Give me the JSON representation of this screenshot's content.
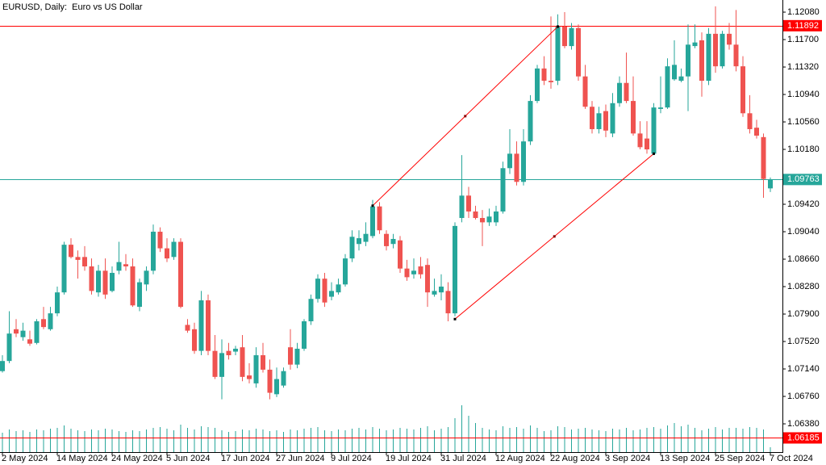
{
  "chart_data": {
    "type": "candlestick",
    "title": "EURUSD, Daily:  Euro vs US Dollar",
    "up_color": "#26a69a",
    "down_color": "#ef5350",
    "volume_color": "#26a69a",
    "ylim": [
      1.05989,
      1.12248
    ],
    "yticks": [
      {
        "value": 1.1208,
        "label": "1.12080"
      },
      {
        "value": 1.117,
        "label": "1.11700"
      },
      {
        "value": 1.1132,
        "label": "1.11320"
      },
      {
        "value": 1.1094,
        "label": "1.10940"
      },
      {
        "value": 1.1056,
        "label": "1.10560"
      },
      {
        "value": 1.1018,
        "label": "1.10180"
      },
      {
        "value": 1.0942,
        "label": "1.09420"
      },
      {
        "value": 1.0904,
        "label": "1.09040"
      },
      {
        "value": 1.0866,
        "label": "1.08660"
      },
      {
        "value": 1.0828,
        "label": "1.08280"
      },
      {
        "value": 1.079,
        "label": "1.07900"
      },
      {
        "value": 1.0752,
        "label": "1.07520"
      },
      {
        "value": 1.0714,
        "label": "1.07140"
      },
      {
        "value": 1.0676,
        "label": "1.06760"
      },
      {
        "value": 1.0638,
        "label": "1.06380"
      }
    ],
    "categories": [
      "2 May 2024",
      null,
      null,
      null,
      null,
      null,
      null,
      null,
      "14 May 2024",
      null,
      null,
      null,
      null,
      null,
      null,
      null,
      "24 May 2024",
      null,
      null,
      null,
      null,
      null,
      null,
      null,
      "5 Jun 2024",
      null,
      null,
      null,
      null,
      null,
      null,
      null,
      "17 Jun 2024",
      null,
      null,
      null,
      null,
      null,
      null,
      null,
      "27 Jun 2024",
      null,
      null,
      null,
      null,
      null,
      null,
      null,
      "9 Jul 2024",
      null,
      null,
      null,
      null,
      null,
      null,
      null,
      "19 Jul 2024",
      null,
      null,
      null,
      null,
      null,
      null,
      null,
      "31 Jul 2024",
      null,
      null,
      null,
      null,
      null,
      null,
      null,
      "12 Aug 2024",
      null,
      null,
      null,
      null,
      null,
      null,
      null,
      "22 Aug 2024",
      null,
      null,
      null,
      null,
      null,
      null,
      null,
      "3 Sep 2024",
      null,
      null,
      null,
      null,
      null,
      null,
      null,
      "13 Sep 2024",
      null,
      null,
      null,
      null,
      null,
      null,
      null,
      "25 Sep 2024",
      null,
      null,
      null,
      null,
      null,
      null,
      null,
      "7 Oct 2024"
    ],
    "open": [
      1.0711,
      1.0725,
      1.0769,
      1.0758,
      1.0755,
      1.075,
      1.0783,
      1.0769,
      1.0791,
      1.082,
      1.0886,
      1.0869,
      1.0869,
      1.0856,
      1.082,
      1.085,
      1.0822,
      1.085,
      1.0859,
      1.0856,
      1.08,
      1.0831,
      1.085,
      1.0904,
      1.0881,
      1.0869,
      1.089,
      1.0775,
      1.0769,
      1.0739,
      1.0809,
      1.0739,
      1.0703,
      1.0739,
      1.0738,
      1.0744,
      1.0705,
      1.0694,
      1.0733,
      1.0713,
      1.0679,
      1.0691,
      1.0744,
      1.072,
      1.0742,
      1.078,
      1.0811,
      1.0839,
      1.0814,
      1.082,
      1.0831,
      1.0867,
      1.0887,
      1.089,
      1.0898,
      1.0939,
      1.0901,
      1.0887,
      1.0892,
      1.0853,
      1.0845,
      1.0856,
      1.0858,
      1.0817,
      1.082,
      1.0822,
      1.0791,
      1.0923,
      1.0954,
      1.0932,
      1.0923,
      1.0917,
      1.0917,
      1.0932,
      1.0992,
      1.1012,
      1.0973,
      1.1029,
      1.1085,
      1.113,
      1.1113,
      1.1113,
      1.1188,
      1.1161,
      1.1186,
      1.1119,
      1.1077,
      1.1046,
      1.1071,
      1.104,
      1.1082,
      1.111,
      1.1085,
      1.104,
      1.1033,
      1.1012,
      1.1074,
      1.1076,
      1.1115,
      1.1113,
      1.1119,
      1.1161,
      1.1169,
      1.1113,
      1.1178,
      1.1133,
      1.1178,
      1.1163,
      1.1133,
      1.1068,
      1.1048,
      1.1035,
      1.0964
    ],
    "high": [
      1.0733,
      1.0794,
      1.0783,
      1.0778,
      1.0767,
      1.0783,
      1.08,
      1.08,
      1.0828,
      1.089,
      1.0895,
      1.0878,
      1.0884,
      1.0867,
      1.0858,
      1.0867,
      1.0856,
      1.089,
      1.0873,
      1.0867,
      1.0839,
      1.0856,
      1.0914,
      1.091,
      1.0895,
      1.0895,
      1.0895,
      1.0783,
      1.0778,
      1.0822,
      1.0817,
      1.0761,
      1.0755,
      1.075,
      1.0746,
      1.0761,
      1.0722,
      1.0744,
      1.075,
      1.0727,
      1.0716,
      1.0716,
      1.0769,
      1.075,
      1.0783,
      1.0817,
      1.0845,
      1.0847,
      1.0834,
      1.0839,
      1.0873,
      1.0906,
      1.0906,
      1.0917,
      1.0948,
      1.0945,
      1.0906,
      1.0901,
      1.0898,
      1.0865,
      1.0867,
      1.0869,
      1.0867,
      1.0839,
      1.0845,
      1.0834,
      1.0917,
      1.101,
      1.0966,
      1.094,
      1.0934,
      1.0936,
      1.094,
      1.1001,
      1.1046,
      1.1029,
      1.1046,
      1.1093,
      1.1135,
      1.1147,
      1.1202,
      1.1205,
      1.1208,
      1.1193,
      1.1191,
      1.1135,
      1.1085,
      1.1077,
      1.108,
      1.1096,
      1.1119,
      1.1152,
      1.1119,
      1.1057,
      1.1057,
      1.1082,
      1.1119,
      1.1144,
      1.1169,
      1.113,
      1.1191,
      1.1191,
      1.118,
      1.1186,
      1.1216,
      1.1182,
      1.1193,
      1.1211,
      1.1147,
      1.1093,
      1.1059,
      1.104,
      1.0979
    ],
    "low": [
      1.0709,
      1.0722,
      1.0758,
      1.0753,
      1.0746,
      1.0748,
      1.0769,
      1.0767,
      1.0787,
      1.0817,
      1.0867,
      1.0839,
      1.085,
      1.0817,
      1.0814,
      1.0811,
      1.082,
      1.0845,
      1.085,
      1.08,
      1.0794,
      1.0822,
      1.0845,
      1.0876,
      1.0862,
      1.0865,
      1.0798,
      1.0764,
      1.0735,
      1.0733,
      1.0733,
      1.07,
      1.0672,
      1.0727,
      1.0733,
      1.0697,
      1.0694,
      1.0688,
      1.0709,
      1.0672,
      1.0675,
      1.0688,
      1.0713,
      1.0715,
      1.0739,
      1.0775,
      1.0806,
      1.08,
      1.0809,
      1.0817,
      1.0828,
      1.0862,
      1.0878,
      1.0884,
      1.0895,
      1.0901,
      1.0878,
      1.0881,
      1.0847,
      1.0836,
      1.0839,
      1.0839,
      1.08,
      1.0814,
      1.0809,
      1.078,
      1.0787,
      1.0917,
      1.0923,
      1.0921,
      1.0884,
      1.0912,
      1.0912,
      1.0929,
      1.0984,
      1.0968,
      1.0968,
      1.1024,
      1.1082,
      1.1107,
      1.1102,
      1.1107,
      1.1158,
      1.1156,
      1.1113,
      1.1074,
      1.104,
      1.104,
      1.1035,
      1.1035,
      1.1077,
      1.1082,
      1.1037,
      1.1018,
      1.1012,
      1.101,
      1.1068,
      1.1074,
      1.1113,
      1.1111,
      1.1071,
      1.1158,
      1.1091,
      1.1107,
      1.1124,
      1.113,
      1.1156,
      1.1126,
      1.1063,
      1.104,
      1.1033,
      1.0951,
      1.0959
    ],
    "close": [
      1.0725,
      1.0763,
      1.0763,
      1.0767,
      1.0749,
      1.078,
      1.0772,
      1.0791,
      1.082,
      1.0886,
      1.0869,
      1.0865,
      1.0856,
      1.0822,
      1.085,
      1.0817,
      1.0847,
      1.0862,
      1.0856,
      1.0802,
      1.0834,
      1.085,
      1.0904,
      1.0881,
      1.0867,
      1.089,
      1.08,
      1.0767,
      1.0739,
      1.0809,
      1.0739,
      1.0703,
      1.0736,
      1.0733,
      1.0742,
      1.0703,
      1.07,
      1.0733,
      1.0713,
      1.0681,
      1.07,
      1.0711,
      1.072,
      1.0742,
      1.078,
      1.0811,
      1.0839,
      1.0806,
      1.0822,
      1.0831,
      1.0867,
      1.0897,
      1.0895,
      1.0901,
      1.0939,
      1.0906,
      1.0884,
      1.0894,
      1.0853,
      1.0841,
      1.085,
      1.0845,
      1.082,
      1.0822,
      1.0828,
      1.0791,
      1.0912,
      1.0954,
      1.0932,
      1.0923,
      1.0917,
      1.0925,
      1.0932,
      1.0992,
      1.1012,
      1.0973,
      1.1029,
      1.1085,
      1.113,
      1.1113,
      1.1111,
      1.1188,
      1.1161,
      1.1186,
      1.1119,
      1.1077,
      1.1046,
      1.1068,
      1.1044,
      1.1082,
      1.111,
      1.1085,
      1.104,
      1.1021,
      1.1018,
      1.1076,
      1.1076,
      1.1133,
      1.1135,
      1.1119,
      1.1163,
      1.1166,
      1.1113,
      1.1178,
      1.1133,
      1.1178,
      1.1163,
      1.1133,
      1.1068,
      1.1046,
      1.1037,
      1.0977,
      1.09763
    ],
    "volume": [
      24,
      28,
      26,
      27,
      25,
      28,
      27,
      29,
      30,
      33,
      29,
      27,
      26,
      28,
      27,
      29,
      28,
      26,
      25,
      27,
      26,
      28,
      30,
      31,
      29,
      27,
      34,
      30,
      28,
      32,
      31,
      30,
      27,
      25,
      26,
      28,
      27,
      29,
      28,
      26,
      27,
      25,
      28,
      27,
      29,
      30,
      31,
      27,
      26,
      28,
      27,
      29,
      30,
      28,
      31,
      29,
      27,
      28,
      30,
      29,
      28,
      30,
      32,
      27,
      29,
      31,
      42,
      58,
      45,
      36,
      30,
      28,
      27,
      32,
      30,
      31,
      29,
      33,
      30,
      26,
      27,
      32,
      31,
      28,
      29,
      30,
      28,
      27,
      26,
      29,
      28,
      30,
      27,
      28,
      30,
      31,
      29,
      33,
      36,
      32,
      34,
      30,
      27,
      29,
      31,
      28,
      30,
      30,
      29,
      31,
      30,
      28,
      6
    ],
    "price_lines": [
      {
        "value": 1.11892,
        "color": "#ff0000"
      },
      {
        "value": 1.09763,
        "color": "#26a69a"
      },
      {
        "value": 1.06185,
        "color": "#ff0000"
      }
    ],
    "trendlines": [
      {
        "color": "#ff0000",
        "points": [
          {
            "index": 54,
            "price": 1.094
          },
          {
            "index": 81,
            "price": 1.1188
          }
        ]
      },
      {
        "color": "#ff0000",
        "points": [
          {
            "index": 66,
            "price": 1.0783
          },
          {
            "index": 95,
            "price": 1.1012
          }
        ]
      }
    ]
  }
}
